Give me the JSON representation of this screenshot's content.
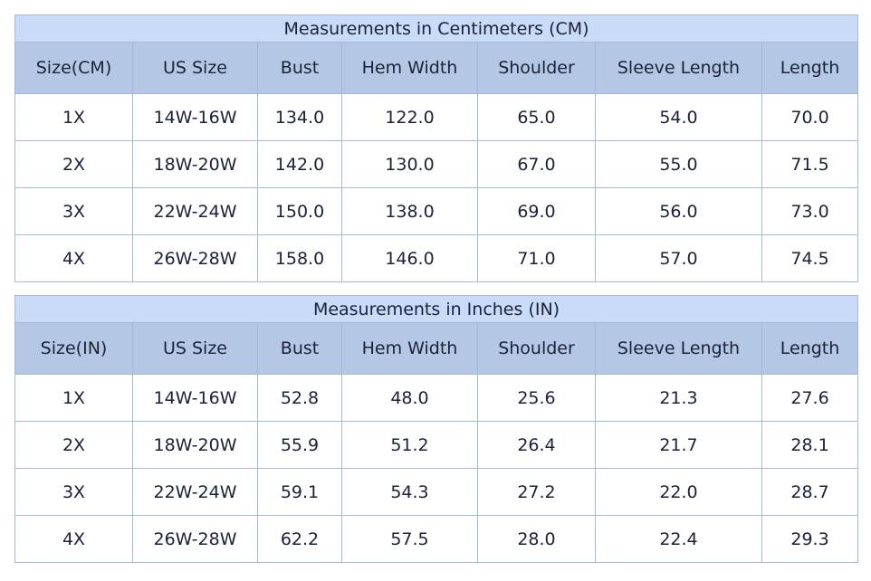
{
  "tables": [
    {
      "title": "Measurements in Centimeters (CM)",
      "headers": [
        "Size(CM)",
        "US Size",
        "Bust",
        "Hem Width",
        "Shoulder",
        "Sleeve Length",
        "Length"
      ],
      "rows": [
        [
          "1X",
          "14W-16W",
          "134.0",
          "122.0",
          "65.0",
          "54.0",
          "70.0"
        ],
        [
          "2X",
          "18W-20W",
          "142.0",
          "130.0",
          "67.0",
          "55.0",
          "71.5"
        ],
        [
          "3X",
          "22W-24W",
          "150.0",
          "138.0",
          "69.0",
          "56.0",
          "73.0"
        ],
        [
          "4X",
          "26W-28W",
          "158.0",
          "146.0",
          "71.0",
          "57.0",
          "74.5"
        ]
      ]
    },
    {
      "title": "Measurements in Inches (IN)",
      "headers": [
        "Size(IN)",
        "US Size",
        "Bust",
        "Hem Width",
        "Shoulder",
        "Sleeve Length",
        "Length"
      ],
      "rows": [
        [
          "1X",
          "14W-16W",
          "52.8",
          "48.0",
          "25.6",
          "21.3",
          "27.6"
        ],
        [
          "2X",
          "18W-20W",
          "55.9",
          "51.2",
          "26.4",
          "21.7",
          "28.1"
        ],
        [
          "3X",
          "22W-24W",
          "59.1",
          "54.3",
          "27.2",
          "22.0",
          "28.7"
        ],
        [
          "4X",
          "26W-28W",
          "62.2",
          "57.5",
          "28.0",
          "22.4",
          "29.3"
        ]
      ]
    }
  ],
  "colors": {
    "title_bg": "#c9dbf6",
    "header_bg": "#b4c8e5",
    "border": "#a3b7d6",
    "text": "#1a2238"
  }
}
